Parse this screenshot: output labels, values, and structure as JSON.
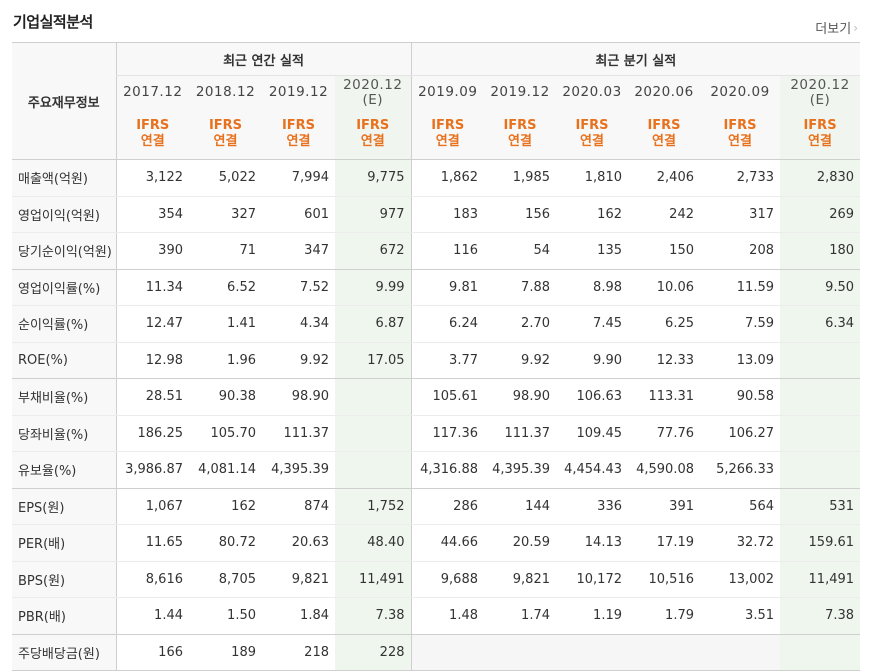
{
  "title": "기업실적분석",
  "more_label": "더보기",
  "header": {
    "row_label": "주요재무정보",
    "annual_group": "최근 연간 실적",
    "quarter_group": "최근 분기 실적",
    "ifrs_top": "IFRS",
    "ifrs_bottom": "연결",
    "estimate_mark": "(E)",
    "annual_periods": [
      "2017.12",
      "2018.12",
      "2019.12",
      "2020.12"
    ],
    "quarter_periods": [
      "2019.09",
      "2019.12",
      "2020.03",
      "2020.06",
      "2020.09",
      "2020.12"
    ]
  },
  "rows": [
    {
      "label": "매출액(억원)",
      "values": [
        "3,122",
        "5,022",
        "7,994",
        "9,775",
        "1,862",
        "1,985",
        "1,810",
        "2,406",
        "2,733",
        "2,830"
      ]
    },
    {
      "label": "영업이익(억원)",
      "values": [
        "354",
        "327",
        "601",
        "977",
        "183",
        "156",
        "162",
        "242",
        "317",
        "269"
      ]
    },
    {
      "label": "당기순이익(억원)",
      "values": [
        "390",
        "71",
        "347",
        "672",
        "116",
        "54",
        "135",
        "150",
        "208",
        "180"
      ]
    },
    {
      "label": "영업이익률(%)",
      "values": [
        "11.34",
        "6.52",
        "7.52",
        "9.99",
        "9.81",
        "7.88",
        "8.98",
        "10.06",
        "11.59",
        "9.50"
      ]
    },
    {
      "label": "순이익률(%)",
      "values": [
        "12.47",
        "1.41",
        "4.34",
        "6.87",
        "6.24",
        "2.70",
        "7.45",
        "6.25",
        "7.59",
        "6.34"
      ]
    },
    {
      "label": "ROE(%)",
      "values": [
        "12.98",
        "1.96",
        "9.92",
        "17.05",
        "3.77",
        "9.92",
        "9.90",
        "12.33",
        "13.09",
        ""
      ]
    },
    {
      "label": "부채비율(%)",
      "values": [
        "28.51",
        "90.38",
        "98.90",
        "",
        "105.61",
        "98.90",
        "106.63",
        "113.31",
        "90.58",
        ""
      ]
    },
    {
      "label": "당좌비율(%)",
      "values": [
        "186.25",
        "105.70",
        "111.37",
        "",
        "117.36",
        "111.37",
        "109.45",
        "77.76",
        "106.27",
        ""
      ]
    },
    {
      "label": "유보율(%)",
      "values": [
        "3,986.87",
        "4,081.14",
        "4,395.39",
        "",
        "4,316.88",
        "4,395.39",
        "4,454.43",
        "4,590.08",
        "5,266.33",
        ""
      ]
    },
    {
      "label": "EPS(원)",
      "values": [
        "1,067",
        "162",
        "874",
        "1,752",
        "286",
        "144",
        "336",
        "391",
        "564",
        "531"
      ]
    },
    {
      "label": "PER(배)",
      "values": [
        "11.65",
        "80.72",
        "20.63",
        "48.40",
        "44.66",
        "20.59",
        "14.13",
        "17.19",
        "32.72",
        "159.61"
      ]
    },
    {
      "label": "BPS(원)",
      "values": [
        "8,616",
        "8,705",
        "9,821",
        "11,491",
        "9,688",
        "9,821",
        "10,172",
        "10,516",
        "13,002",
        "11,491"
      ]
    },
    {
      "label": "PBR(배)",
      "values": [
        "1.44",
        "1.50",
        "1.84",
        "7.38",
        "1.48",
        "1.74",
        "1.19",
        "1.79",
        "3.51",
        "7.38"
      ]
    },
    {
      "label": "주당배당금(원)",
      "values": [
        "166",
        "189",
        "218",
        "228",
        "",
        "",
        "",
        "",
        "",
        ""
      ]
    }
  ],
  "colors": {
    "ifrs": "#e8711d",
    "estimate_bg": "#eef6ee",
    "header_bg": "#f8f8f8"
  }
}
